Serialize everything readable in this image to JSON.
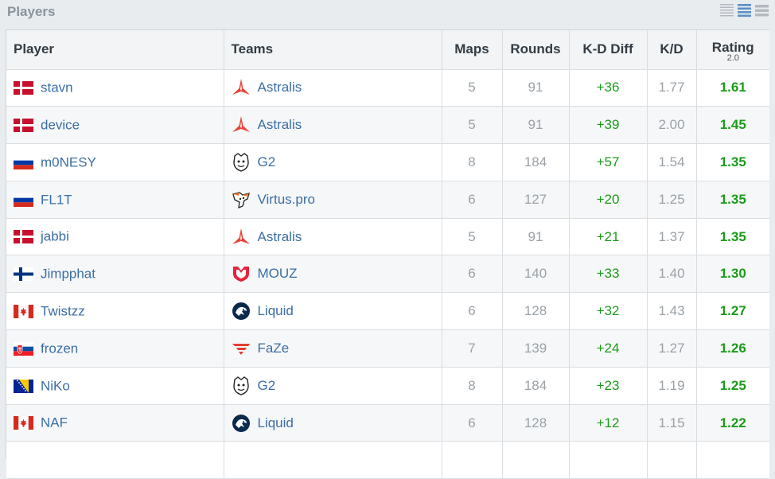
{
  "section_title": "Players",
  "view_icons": [
    "list-compact-icon",
    "list-medium-icon",
    "list-large-icon"
  ],
  "colors": {
    "link": "#3b6ea5",
    "positive": "#1a9c1a",
    "muted": "#9aa1a7"
  },
  "columns": {
    "player": "Player",
    "teams": "Teams",
    "maps": "Maps",
    "rounds": "Rounds",
    "kd_diff": "K-D Diff",
    "kd": "K/D",
    "rating": "Rating",
    "rating_version": "2.0"
  },
  "rows": [
    {
      "player": "stavn",
      "flag": "denmark",
      "team": "Astralis",
      "logo": "astralis",
      "maps": "5",
      "rounds": "91",
      "kd_diff": "+36",
      "kd": "1.77",
      "rating": "1.61"
    },
    {
      "player": "device",
      "flag": "denmark",
      "team": "Astralis",
      "logo": "astralis",
      "maps": "5",
      "rounds": "91",
      "kd_diff": "+39",
      "kd": "2.00",
      "rating": "1.45"
    },
    {
      "player": "m0NESY",
      "flag": "russia",
      "team": "G2",
      "logo": "g2",
      "maps": "8",
      "rounds": "184",
      "kd_diff": "+57",
      "kd": "1.54",
      "rating": "1.35"
    },
    {
      "player": "FL1T",
      "flag": "russia",
      "team": "Virtus.pro",
      "logo": "virtuspro",
      "maps": "6",
      "rounds": "127",
      "kd_diff": "+20",
      "kd": "1.25",
      "rating": "1.35"
    },
    {
      "player": "jabbi",
      "flag": "denmark",
      "team": "Astralis",
      "logo": "astralis",
      "maps": "5",
      "rounds": "91",
      "kd_diff": "+21",
      "kd": "1.37",
      "rating": "1.35"
    },
    {
      "player": "Jimpphat",
      "flag": "finland",
      "team": "MOUZ",
      "logo": "mouz",
      "maps": "6",
      "rounds": "140",
      "kd_diff": "+33",
      "kd": "1.40",
      "rating": "1.30"
    },
    {
      "player": "Twistzz",
      "flag": "canada",
      "team": "Liquid",
      "logo": "liquid",
      "maps": "6",
      "rounds": "128",
      "kd_diff": "+32",
      "kd": "1.43",
      "rating": "1.27"
    },
    {
      "player": "frozen",
      "flag": "slovakia",
      "team": "FaZe",
      "logo": "faze",
      "maps": "7",
      "rounds": "139",
      "kd_diff": "+24",
      "kd": "1.27",
      "rating": "1.26"
    },
    {
      "player": "NiKo",
      "flag": "bosnia",
      "team": "G2",
      "logo": "g2",
      "maps": "8",
      "rounds": "184",
      "kd_diff": "+23",
      "kd": "1.19",
      "rating": "1.25"
    },
    {
      "player": "NAF",
      "flag": "canada",
      "team": "Liquid",
      "logo": "liquid",
      "maps": "6",
      "rounds": "128",
      "kd_diff": "+12",
      "kd": "1.15",
      "rating": "1.22"
    },
    {
      "player": "",
      "flag": "",
      "team": "",
      "logo": "",
      "maps": "",
      "rounds": "",
      "kd_diff": "",
      "kd": "",
      "rating": ""
    }
  ]
}
